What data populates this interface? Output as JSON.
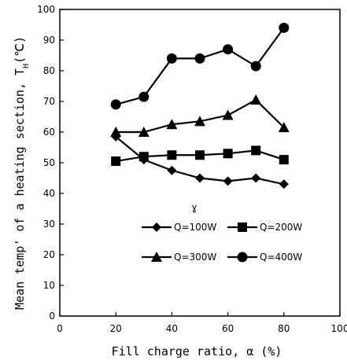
{
  "chart_data": {
    "type": "line",
    "xlabel": "Fill charge ratio, α (%)",
    "ylabel": "Mean temp' of a heating section, T",
    "ylabel_subscript": "H",
    "ylabel_unit": "(℃)",
    "xlim": [
      0,
      100
    ],
    "ylim": [
      0,
      100
    ],
    "x_ticks": [
      0,
      20,
      40,
      60,
      80,
      100
    ],
    "y_ticks": [
      0,
      10,
      20,
      30,
      40,
      50,
      60,
      70,
      80,
      90,
      100
    ],
    "grid": false,
    "legend_position": "lower-right",
    "x": [
      20,
      30,
      40,
      50,
      60,
      70,
      80
    ],
    "series": [
      {
        "name": "Q=100W",
        "marker": "diamond",
        "values": [
          58.5,
          51,
          47.5,
          45,
          44,
          45,
          43
        ]
      },
      {
        "name": "Q=200W",
        "marker": "square",
        "values": [
          50.5,
          52,
          52.5,
          52.5,
          53,
          54,
          51
        ]
      },
      {
        "name": "Q=300W",
        "marker": "triangle",
        "values": [
          60,
          60,
          62.5,
          63.5,
          65.5,
          70.5,
          61.5
        ]
      },
      {
        "name": "Q=400W",
        "marker": "circle",
        "values": [
          69,
          71.5,
          84,
          84,
          87,
          81.5,
          94
        ]
      }
    ],
    "annotation": "ɣ"
  }
}
